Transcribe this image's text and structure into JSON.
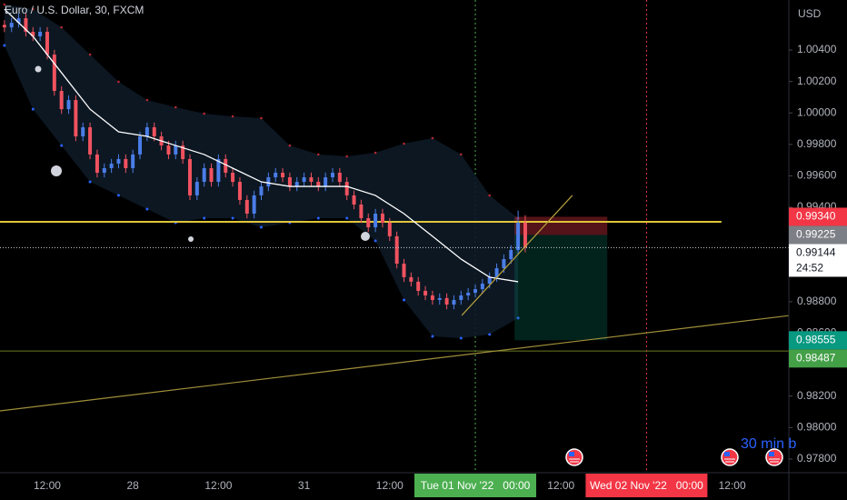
{
  "chart_data": {
    "type": "candlestick",
    "title": "Euro / U.S. Dollar, 30, FXCM",
    "currency": "USD",
    "x": [
      6,
      7,
      8,
      9,
      10,
      11,
      12,
      13,
      14,
      15,
      16,
      17,
      18,
      19,
      20,
      21,
      22,
      23,
      24,
      25,
      26,
      27,
      28,
      29,
      30,
      31,
      32,
      33,
      34,
      35,
      36,
      37,
      38,
      39,
      40,
      41,
      42,
      43,
      44,
      45,
      46,
      47,
      48,
      49,
      50,
      51,
      52,
      53,
      54,
      55,
      56,
      57,
      58,
      59,
      60,
      61,
      62,
      63,
      64,
      65,
      66,
      67,
      68,
      69,
      70,
      71,
      72,
      73,
      74,
      75,
      76,
      77,
      78,
      79
    ],
    "open": [
      1.0056,
      1.00544,
      1.00573,
      1.00602,
      1.00516,
      1.00487,
      1.00516,
      1.00371,
      1.0014,
      1.00024,
      1.00082,
      0.99851,
      0.99909,
      0.99736,
      0.9962,
      0.99649,
      0.99678,
      0.99707,
      0.99649,
      0.99736,
      0.99851,
      0.99909,
      0.99851,
      0.99793,
      0.99736,
      0.99793,
      0.99707,
      0.99476,
      0.99562,
      0.99649,
      0.99562,
      0.99707,
      0.9962,
      0.99562,
      0.99447,
      0.9936,
      0.99476,
      0.99533,
      0.99591,
      0.9962,
      0.99591,
      0.99533,
      0.99562,
      0.99591,
      0.99562,
      0.99533,
      0.99591,
      0.9962,
      0.99562,
      0.99476,
      0.99418,
      0.99331,
      0.99273,
      0.9936,
      0.99302,
      0.99216,
      0.99042,
      0.98956,
      0.98927,
      0.98869,
      0.9884,
      0.98811,
      0.98823,
      0.98782,
      0.98811,
      0.9884,
      0.98857,
      0.9888,
      0.98915,
      0.98956,
      0.99013,
      0.99071,
      0.99129,
      0.99302
    ],
    "high": [
      1.0059,
      1.00603,
      1.00632,
      1.00632,
      1.00546,
      1.00546,
      1.00546,
      1.00401,
      1.0017,
      1.00112,
      1.00112,
      0.99939,
      0.99939,
      0.99766,
      0.99679,
      0.99708,
      0.99737,
      0.99737,
      0.99766,
      0.99881,
      0.99939,
      0.99939,
      0.99881,
      0.99823,
      0.99823,
      0.99823,
      0.99737,
      0.99592,
      0.99679,
      0.99679,
      0.99737,
      0.99737,
      0.9965,
      0.99592,
      0.99477,
      0.99506,
      0.99563,
      0.99621,
      0.9965,
      0.9965,
      0.99621,
      0.99592,
      0.99621,
      0.99621,
      0.99592,
      0.99621,
      0.9965,
      0.9965,
      0.99592,
      0.99506,
      0.99448,
      0.99361,
      0.9939,
      0.9939,
      0.99332,
      0.99246,
      0.99072,
      0.98986,
      0.98957,
      0.98899,
      0.9887,
      0.98853,
      0.98853,
      0.98841,
      0.9887,
      0.98887,
      0.9891,
      0.98945,
      0.98986,
      0.99043,
      0.99101,
      0.99159,
      0.9938,
      0.9935
    ],
    "low": [
      1.00514,
      1.00514,
      1.00543,
      1.00486,
      1.00457,
      1.00457,
      1.00341,
      1.0011,
      0.99994,
      0.99994,
      0.99821,
      0.99821,
      0.99706,
      0.9959,
      0.9959,
      0.99619,
      0.99648,
      0.99619,
      0.99619,
      0.99706,
      0.99821,
      0.99821,
      0.99763,
      0.99706,
      0.99706,
      0.99677,
      0.99446,
      0.99446,
      0.99532,
      0.99532,
      0.99532,
      0.9959,
      0.99532,
      0.99417,
      0.9933,
      0.9933,
      0.99446,
      0.99503,
      0.99561,
      0.99561,
      0.99503,
      0.99503,
      0.99532,
      0.99532,
      0.99503,
      0.99503,
      0.99561,
      0.99532,
      0.99446,
      0.99388,
      0.99301,
      0.99243,
      0.99243,
      0.99272,
      0.99186,
      0.99012,
      0.98926,
      0.98897,
      0.98839,
      0.9881,
      0.98781,
      0.98781,
      0.98752,
      0.98752,
      0.98781,
      0.9881,
      0.98827,
      0.9885,
      0.98885,
      0.98926,
      0.98983,
      0.99041,
      0.99099,
      0.99114
    ],
    "close": [
      1.00544,
      1.00573,
      1.00602,
      1.00516,
      1.00487,
      1.00516,
      1.00371,
      1.0014,
      1.00024,
      1.00082,
      0.99851,
      0.99909,
      0.99736,
      0.9962,
      0.99649,
      0.99678,
      0.99707,
      0.99649,
      0.99736,
      0.99851,
      0.99909,
      0.99851,
      0.99793,
      0.99736,
      0.99793,
      0.99707,
      0.99476,
      0.99562,
      0.99649,
      0.99562,
      0.99707,
      0.9962,
      0.99562,
      0.99447,
      0.9936,
      0.99476,
      0.99533,
      0.99591,
      0.9962,
      0.99591,
      0.99533,
      0.99562,
      0.99591,
      0.99562,
      0.99533,
      0.99591,
      0.9962,
      0.99562,
      0.99476,
      0.99418,
      0.99331,
      0.99273,
      0.9936,
      0.99302,
      0.99216,
      0.99042,
      0.98956,
      0.98927,
      0.98869,
      0.9884,
      0.98811,
      0.98823,
      0.98782,
      0.98811,
      0.9884,
      0.98857,
      0.9888,
      0.98915,
      0.98956,
      0.99013,
      0.99071,
      0.99129,
      0.99302,
      0.99144
    ],
    "up_color": "#4a7de8",
    "down_color": "#f0525f",
    "overlays": [
      {
        "kind": "band",
        "color": "#2962ff",
        "upper_color": "#b22833",
        "fill": "#0d1a26",
        "x": [
          6,
          10,
          14,
          18,
          22,
          26,
          30,
          34,
          38,
          42,
          46,
          50,
          54,
          58,
          62,
          66,
          70,
          74,
          78
        ],
        "upper": [
          1.00689,
          1.0066,
          1.00544,
          1.00371,
          1.00198,
          1.00082,
          1.00036,
          0.99996,
          0.99978,
          0.99967,
          0.99793,
          0.99736,
          0.99724,
          0.99747,
          0.99805,
          0.9984,
          0.99736,
          0.99476,
          0.99331
        ],
        "lower": [
          1.00429,
          1.00024,
          0.99793,
          0.99562,
          0.99476,
          0.99389,
          0.99302,
          0.99331,
          0.99331,
          0.99273,
          0.99302,
          0.99331,
          0.99331,
          0.99187,
          0.98811,
          0.9858,
          0.98568,
          0.98592,
          0.98696
        ]
      },
      {
        "kind": "line",
        "color": "#ffffff",
        "x": [
          6,
          10,
          14,
          18,
          22,
          26,
          30,
          34,
          38,
          42,
          46,
          50,
          54,
          58,
          62,
          66,
          70,
          74,
          78
        ],
        "values": [
          1.0066,
          1.00487,
          1.00256,
          1.00024,
          0.9988,
          0.99851,
          0.99793,
          0.99736,
          0.99649,
          0.99562,
          0.99533,
          0.99533,
          0.99533,
          0.99476,
          0.9936,
          0.99216,
          0.99071,
          0.98956,
          0.98927
        ]
      }
    ],
    "horizontal_lines": [
      {
        "value": 0.99308,
        "color": "#e0c63a",
        "width": 2,
        "end": 106.5
      },
      {
        "value": 0.98487,
        "color": "#6b7a1f",
        "width": 1
      }
    ],
    "trend_lines": [
      {
        "x": [
          5.38,
          116.2
        ],
        "values": [
          0.98106,
          0.98713
        ],
        "color": "#a08f3a"
      },
      {
        "x": [
          70.1,
          85.6
        ],
        "values": [
          0.98713,
          0.99476
        ],
        "color": "#b7a23d"
      }
    ],
    "position": {
      "x": [
        77.5,
        90.5
      ],
      "stop": 0.9934,
      "entry": 0.99225,
      "target": 0.98555
    },
    "price_labels": [
      {
        "value": 0.9934,
        "label": "0.99340",
        "color": "#f23645",
        "text_color": "#ffffff"
      },
      {
        "value": 0.99225,
        "label": "0.99225",
        "color": "#7d7f86",
        "text_color": "#ffffff"
      },
      {
        "value": 0.99144,
        "label": "0.99144",
        "color": "#ffffff",
        "text_color": "#131722"
      },
      {
        "value": 0.98555,
        "label": "0.98555",
        "color": "#089981",
        "text_color": "#ffffff"
      },
      {
        "value": 0.98487,
        "label": "0.98487",
        "color": "#43a047",
        "text_color": "#ffffff"
      }
    ],
    "countdown": "24:52",
    "annotation": "30 min b",
    "xlim": [
      5.38,
      116.2
    ],
    "xticks": [
      {
        "value": 12,
        "label": "12:00"
      },
      {
        "value": 24,
        "label": "28"
      },
      {
        "value": 36,
        "label": "12:00"
      },
      {
        "value": 48,
        "label": "31"
      },
      {
        "value": 60,
        "label": "12:00"
      },
      {
        "value": 72,
        "label": "Tue 01 Nov '22   00:00",
        "badge": "#4caf50"
      },
      {
        "value": 84,
        "label": "12:00"
      },
      {
        "value": 96,
        "label": "Wed 02 Nov '22   00:00",
        "badge": "#f23645"
      },
      {
        "value": 108,
        "label": "12:00"
      }
    ],
    "ylim": [
      0.97713,
      1.00718
    ],
    "yticks": [
      {
        "value": 1.004,
        "label": "1.00400"
      },
      {
        "value": 1.002,
        "label": "1.00200"
      },
      {
        "value": 1,
        "label": "1.00000"
      },
      {
        "value": 0.998,
        "label": "0.99800"
      },
      {
        "value": 0.996,
        "label": "0.99600"
      },
      {
        "value": 0.994,
        "label": "0.99400"
      },
      {
        "value": 0.988,
        "label": "0.98800"
      },
      {
        "value": 0.986,
        "label": "0.98600"
      },
      {
        "value": 0.982,
        "label": "0.98200"
      },
      {
        "value": 0.98,
        "label": "0.98000"
      },
      {
        "value": 0.978,
        "label": "0.97800"
      }
    ]
  }
}
